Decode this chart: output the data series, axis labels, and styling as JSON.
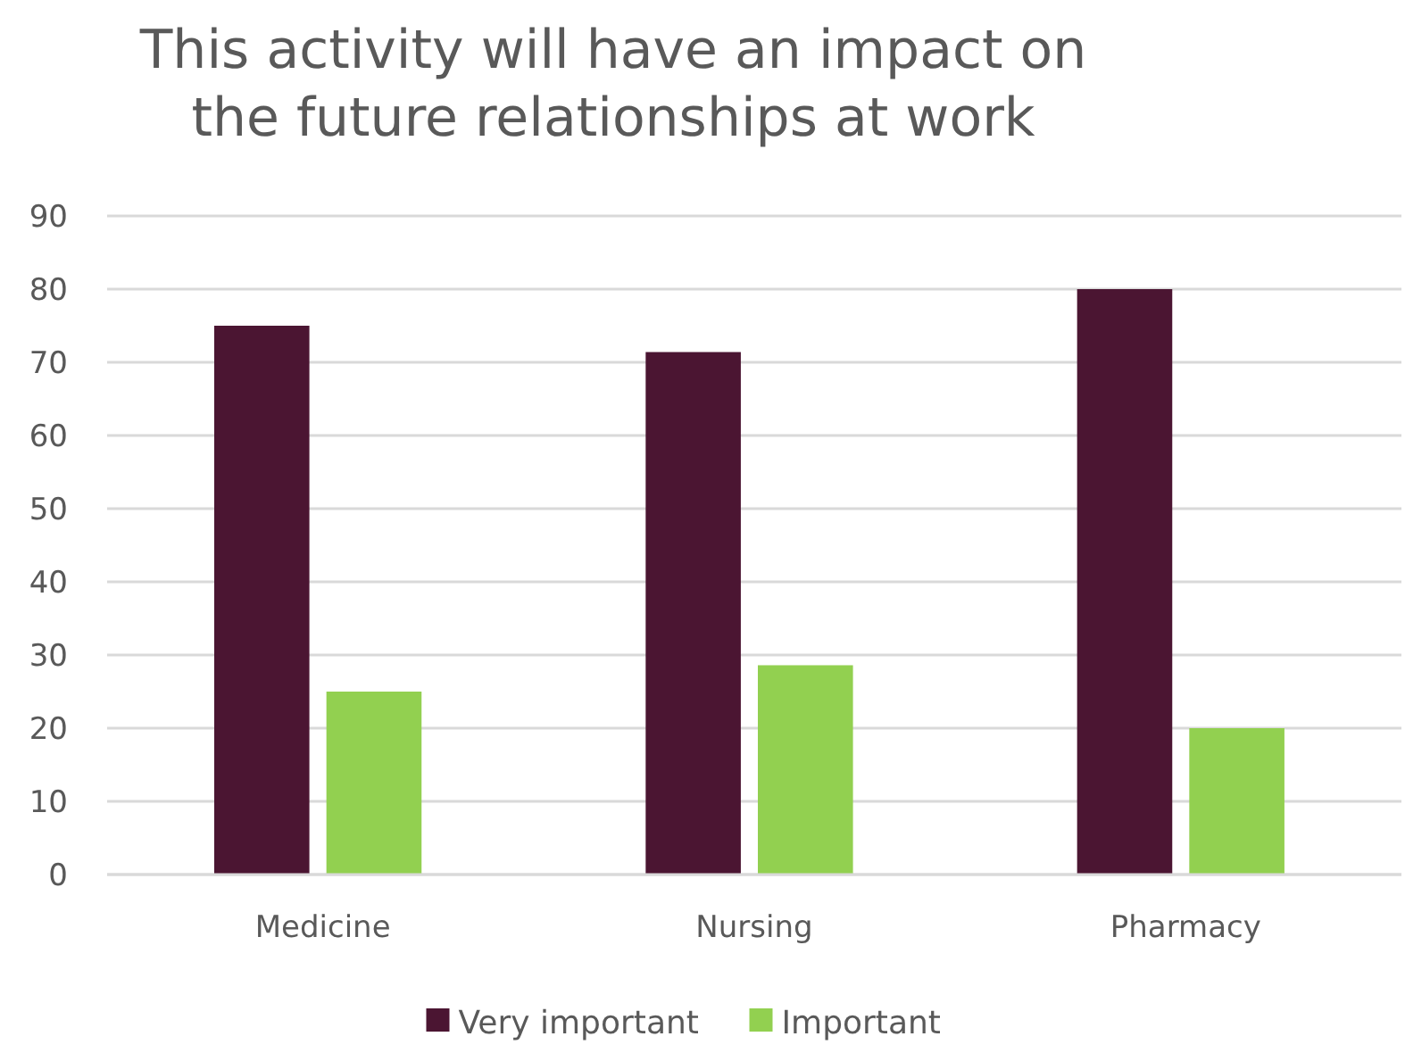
{
  "chart_data": {
    "type": "bar",
    "title": "This activity will have an impact on\nthe future relationships at work",
    "categories": [
      "Medicine",
      "Nursing",
      "Pharmacy"
    ],
    "series": [
      {
        "name": "Very important",
        "color": "#4b1532",
        "values": [
          75,
          71.4,
          80
        ]
      },
      {
        "name": "Important",
        "color": "#92d050",
        "values": [
          25,
          28.6,
          20
        ]
      }
    ],
    "ylim": [
      0,
      90
    ],
    "yticks": [
      0,
      10,
      20,
      30,
      40,
      50,
      60,
      70,
      80,
      90
    ],
    "grid": "y",
    "legend": "bottom"
  }
}
